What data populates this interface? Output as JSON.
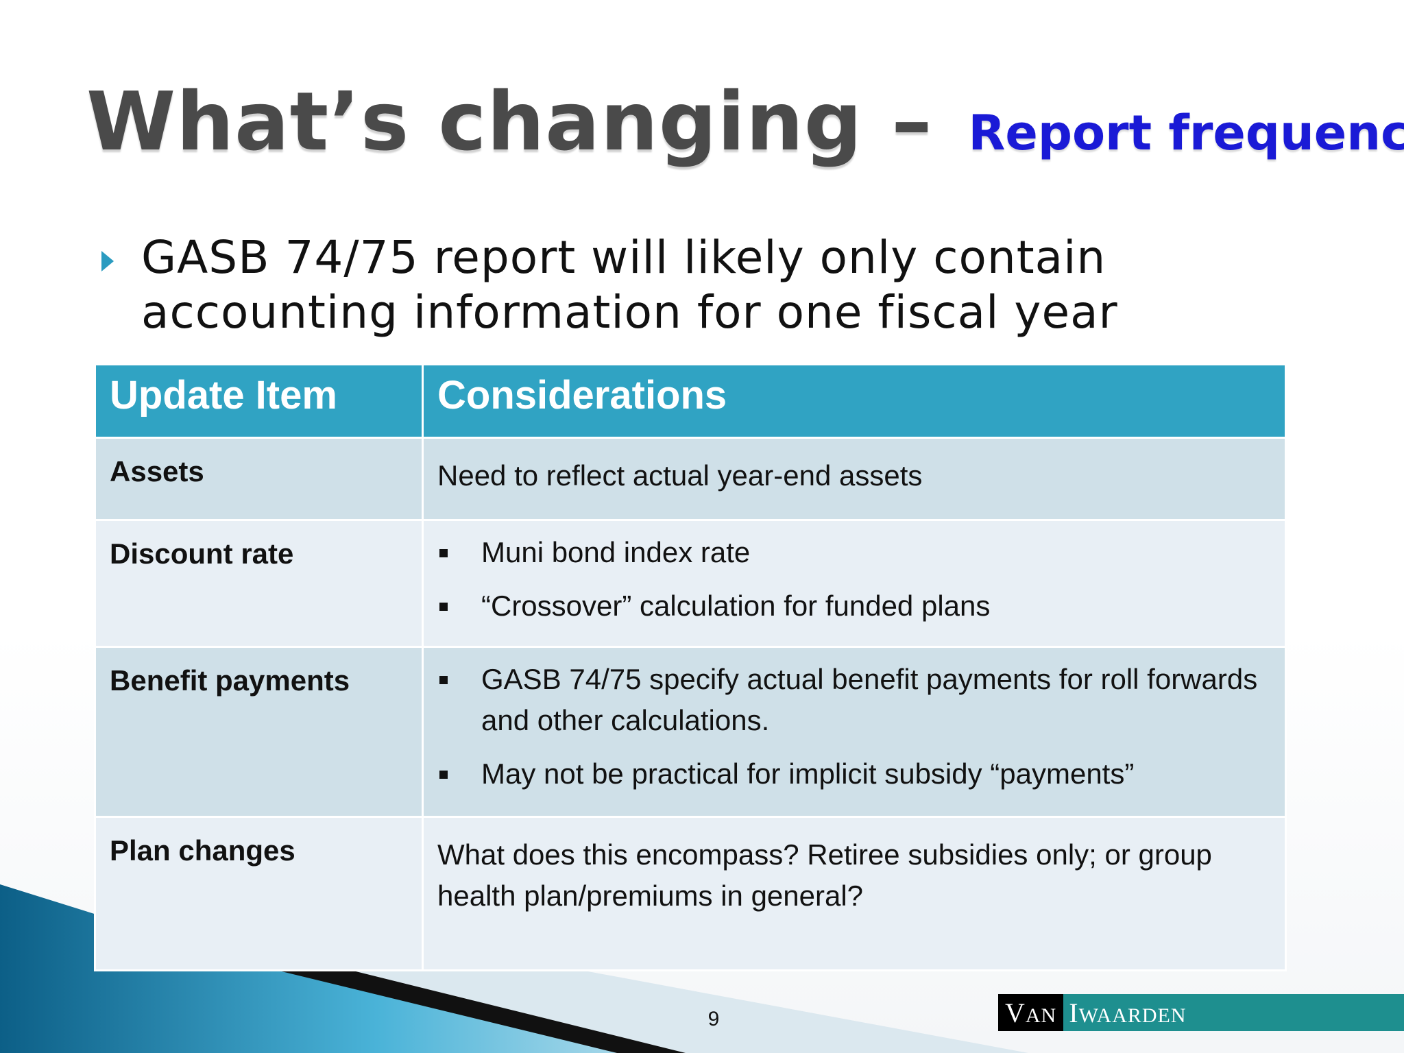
{
  "title": {
    "main": "What’s changing – ",
    "sub": "Report frequency"
  },
  "bullet": {
    "text": "GASB 74/75 report will likely only contain accounting information for one fiscal year"
  },
  "table": {
    "headers": [
      "Update Item",
      "Considerations"
    ],
    "rows": [
      {
        "item": "Assets",
        "text": "Need to reflect actual year-end assets"
      },
      {
        "item": "Discount rate",
        "points": [
          "Muni bond index rate",
          "“Crossover” calculation for funded plans"
        ]
      },
      {
        "item": "Benefit payments",
        "points": [
          "GASB 74/75 specify actual benefit payments for roll forwards and other calculations.",
          "May not be practical for implicit subsidy “payments”"
        ]
      },
      {
        "item": "Plan changes",
        "text": "What does this encompass? Retiree subsidies only; or group health plan/premiums in general?"
      }
    ]
  },
  "footer": {
    "page_number": "9",
    "logo_first": "Van",
    "logo_rest": "Iwaarden"
  },
  "colors": {
    "title_main": "#4a4a4a",
    "title_sub": "#1a1ad6",
    "header_bg": "#30a3c3",
    "row_dark": "#cfe0e8",
    "row_light": "#e8eff5",
    "accent": "#2a9bc0"
  },
  "icons": {
    "bullet": "triangle-bullet-icon",
    "list_marker": "square-bullet-icon"
  }
}
